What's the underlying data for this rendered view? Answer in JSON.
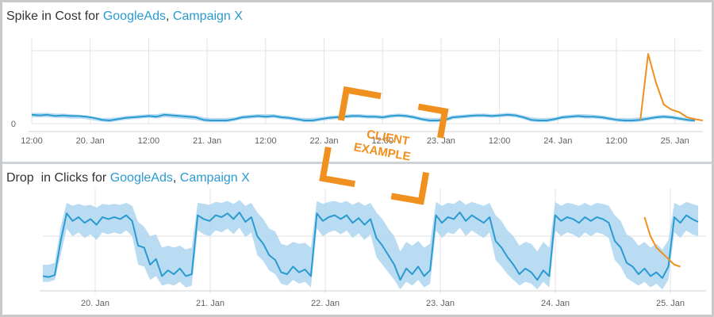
{
  "chart_data": [
    {
      "type": "line",
      "title_prefix": "Spike in Cost for ",
      "title_source": "GoogleAds",
      "title_sep": ", ",
      "title_campaign": "Campaign X",
      "xticks": [
        "12:00",
        "20. Jan",
        "12:00",
        "21. Jan",
        "12:00",
        "22. Jan",
        "12:00",
        "23. Jan",
        "12:00",
        "24. Jan",
        "12:00",
        "25. Jan"
      ],
      "yticks": [
        "0"
      ],
      "ylim": [
        0,
        120
      ],
      "grid": true,
      "series": [
        {
          "role": "actual",
          "color": "#2a9bd0",
          "values": [
            14,
            13,
            14,
            12,
            13,
            12,
            12,
            11,
            9,
            6,
            5,
            7,
            9,
            10,
            11,
            12,
            11,
            14,
            13,
            12,
            11,
            10,
            6,
            5,
            5,
            5,
            7,
            10,
            11,
            12,
            11,
            12,
            10,
            9,
            7,
            5,
            5,
            7,
            9,
            10,
            11,
            12,
            12,
            11,
            11,
            10,
            12,
            13,
            12,
            10,
            7,
            5,
            5,
            6,
            10,
            11,
            12,
            13,
            13,
            12,
            13,
            14,
            13,
            10,
            6,
            5,
            5,
            7,
            10,
            11,
            12,
            11,
            11,
            10,
            8,
            6,
            5,
            5,
            6,
            8,
            10,
            11,
            10,
            8,
            6,
            5
          ]
        },
        {
          "role": "expected-band-upper",
          "values": [
            17,
            17,
            17,
            16,
            16,
            15,
            14,
            13,
            11,
            9,
            9,
            10,
            12,
            13,
            14,
            15,
            15,
            17,
            16,
            15,
            14,
            13,
            10,
            9,
            9,
            9,
            10,
            13,
            14,
            15,
            15,
            15,
            13,
            12,
            10,
            9,
            9,
            10,
            12,
            13,
            14,
            15,
            15,
            14,
            14,
            13,
            15,
            16,
            15,
            13,
            10,
            9,
            9,
            10,
            13,
            14,
            15,
            16,
            16,
            15,
            16,
            17,
            16,
            13,
            10,
            9,
            9,
            10,
            13,
            14,
            15,
            15,
            14,
            13,
            11,
            9,
            9,
            9,
            10,
            11,
            13,
            14,
            13,
            11,
            9,
            9
          ]
        },
        {
          "role": "expected-band-lower",
          "values": [
            10,
            10,
            10,
            9,
            9,
            8,
            8,
            7,
            5,
            3,
            2,
            4,
            6,
            7,
            8,
            9,
            8,
            10,
            9,
            8,
            7,
            6,
            3,
            2,
            2,
            2,
            4,
            7,
            8,
            9,
            8,
            9,
            7,
            6,
            4,
            2,
            2,
            4,
            6,
            7,
            8,
            9,
            9,
            8,
            8,
            7,
            9,
            10,
            9,
            7,
            4,
            2,
            2,
            3,
            7,
            8,
            9,
            10,
            10,
            9,
            10,
            11,
            10,
            7,
            3,
            2,
            2,
            4,
            7,
            8,
            9,
            8,
            8,
            7,
            5,
            3,
            2,
            2,
            3,
            5,
            7,
            8,
            7,
            5,
            3,
            2
          ]
        },
        {
          "role": "anomaly",
          "color": "#f0901e",
          "start_index": 78,
          "values": [
            6,
            110,
            65,
            30,
            22,
            18,
            10,
            7,
            5
          ]
        }
      ]
    },
    {
      "type": "line",
      "title_prefix": "Drop  in Clicks for ",
      "title_source": "GoogleAds",
      "title_sep": ", ",
      "title_campaign": "Campaign X",
      "xticks": [
        "20. Jan",
        "21. Jan",
        "22. Jan",
        "23. Jan",
        "24. Jan",
        "25. Jan"
      ],
      "ylim": [
        0,
        100
      ],
      "grid": true,
      "series": [
        {
          "role": "actual",
          "color": "#2a9bd0",
          "values": [
            18,
            17,
            19,
            55,
            84,
            76,
            80,
            74,
            78,
            72,
            80,
            78,
            80,
            78,
            82,
            76,
            50,
            48,
            30,
            36,
            18,
            24,
            20,
            26,
            18,
            20,
            82,
            78,
            76,
            82,
            80,
            84,
            78,
            85,
            75,
            80,
            60,
            52,
            40,
            35,
            22,
            20,
            28,
            22,
            25,
            18,
            84,
            76,
            80,
            82,
            78,
            82,
            74,
            79,
            72,
            78,
            58,
            50,
            40,
            30,
            14,
            26,
            20,
            28,
            18,
            24,
            82,
            74,
            80,
            78,
            85,
            76,
            82,
            78,
            74,
            80,
            55,
            48,
            38,
            30,
            20,
            26,
            22,
            14,
            24,
            18,
            82,
            76,
            80,
            78,
            74,
            80,
            76,
            80,
            78,
            74,
            55,
            48,
            32,
            28,
            20,
            26,
            18,
            22,
            16,
            28,
            80,
            74,
            82,
            78,
            75
          ]
        },
        {
          "role": "expected-band-upper",
          "values": [
            30,
            30,
            32,
            70,
            95,
            92,
            94,
            92,
            93,
            90,
            94,
            93,
            94,
            93,
            95,
            92,
            75,
            70,
            60,
            62,
            48,
            50,
            48,
            50,
            46,
            48,
            95,
            94,
            93,
            96,
            95,
            97,
            94,
            98,
            92,
            95,
            85,
            78,
            68,
            65,
            52,
            50,
            54,
            52,
            53,
            48,
            97,
            94,
            96,
            97,
            95,
            97,
            93,
            96,
            92,
            95,
            85,
            78,
            68,
            60,
            44,
            54,
            50,
            55,
            48,
            52,
            96,
            92,
            95,
            94,
            98,
            93,
            96,
            94,
            92,
            95,
            82,
            76,
            66,
            60,
            50,
            54,
            52,
            44,
            54,
            48,
            96,
            92,
            95,
            94,
            92,
            95,
            92,
            95,
            94,
            92,
            82,
            76,
            62,
            58,
            50,
            54,
            48,
            52,
            46,
            56,
            95,
            92,
            96,
            94,
            92
          ]
        },
        {
          "role": "expected-band-lower",
          "values": [
            12,
            12,
            14,
            40,
            68,
            60,
            64,
            58,
            62,
            56,
            64,
            62,
            64,
            62,
            66,
            60,
            30,
            28,
            14,
            18,
            8,
            10,
            8,
            12,
            6,
            8,
            66,
            62,
            60,
            66,
            64,
            68,
            62,
            69,
            59,
            64,
            40,
            34,
            24,
            20,
            10,
            8,
            14,
            10,
            12,
            6,
            68,
            60,
            64,
            66,
            62,
            66,
            58,
            63,
            56,
            62,
            38,
            30,
            22,
            14,
            4,
            12,
            8,
            14,
            6,
            10,
            66,
            58,
            64,
            62,
            69,
            60,
            66,
            62,
            58,
            64,
            35,
            28,
            20,
            14,
            8,
            12,
            10,
            4,
            12,
            6,
            66,
            60,
            64,
            62,
            58,
            64,
            60,
            64,
            62,
            58,
            35,
            28,
            16,
            12,
            8,
            12,
            6,
            10,
            4,
            14,
            64,
            58,
            66,
            62,
            60
          ]
        },
        {
          "role": "anomaly",
          "color": "#f0901e",
          "start_index": 101,
          "values": [
            80,
            60,
            48,
            42,
            36,
            30,
            28
          ]
        }
      ]
    }
  ],
  "watermark": {
    "text_line1": "CLIENT",
    "text_line2": "EXAMPLE",
    "color": "#f0901e"
  }
}
